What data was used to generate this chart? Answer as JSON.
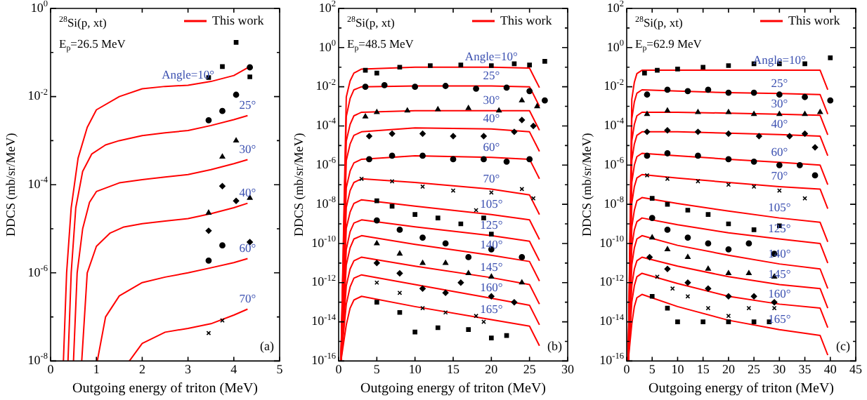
{
  "chart_data": [
    {
      "type": "scatter",
      "xlabel": "Outgoing energy of triton (MeV)",
      "ylabel": "DDCS (mb/sr/MeV)",
      "log": true,
      "legend": "top right",
      "xlim": [
        0,
        5
      ],
      "xticks": [
        0,
        1,
        2,
        3,
        4,
        5
      ],
      "ylim": [
        1e-08,
        1
      ],
      "yticks": [
        {
          "value": 1e-08,
          "label": "10$^{-8}$"
        },
        {
          "value": 1e-07,
          "label": null
        },
        {
          "value": 1e-06,
          "label": "10$^{-6}$"
        },
        {
          "value": 1e-05,
          "label": null
        },
        {
          "value": 0.0001,
          "label": "10$^{-4}$"
        },
        {
          "value": 0.001,
          "label": null
        },
        {
          "value": 0.01,
          "label": "10$^{-2}$"
        },
        {
          "value": 0.1,
          "label": null
        },
        {
          "value": 1,
          "label": "10$^{0}$"
        }
      ],
      "annotations": [
        "$^{28}$Si(p, xt)",
        "E$_{p}$=26.5 MeV",
        "(a)",
        {
          "text": "Angle=10°",
          "x": 3.0,
          "y": 0.018
        },
        {
          "text": "25°",
          "x": 4.3,
          "y": 0.0037
        },
        {
          "text": "30°",
          "x": 4.3,
          "y": 0.00037
        },
        {
          "text": "40°",
          "x": 4.3,
          "y": 3.8e-05
        },
        {
          "text": "60°",
          "x": 4.3,
          "y": 2.1e-06
        },
        {
          "text": "70°",
          "x": 4.3,
          "y": 1.5e-07
        }
      ],
      "series": [
        {
          "type": "scatter",
          "color": "#000000",
          "marker": "square",
          "x": [
            3.45,
            3.75,
            4.05,
            4.35
          ],
          "values": [
            0.027,
            0.048,
            0.17,
            0.028
          ]
        },
        {
          "type": "scatter",
          "color": "#000000",
          "marker": "circle",
          "x": [
            3.45,
            3.75,
            4.05,
            4.35
          ],
          "values": [
            0.0029,
            0.0047,
            0.011,
            0.046
          ]
        },
        {
          "type": "scatter",
          "color": "#000000",
          "marker": "triangle",
          "x": [
            3.45,
            3.75,
            4.05,
            4.35
          ],
          "values": [
            2.3e-05,
            0.00043,
            0.001,
            5e-05
          ]
        },
        {
          "type": "scatter",
          "color": "#000000",
          "marker": "diamond",
          "x": [
            3.45,
            3.75,
            4.05,
            4.35
          ],
          "values": [
            9e-06,
            9.3e-05,
            4.3e-05,
            5e-06
          ]
        },
        {
          "type": "scatter",
          "color": "#000000",
          "marker": "circle",
          "x": [
            3.45,
            3.75
          ],
          "values": [
            1.9e-06,
            4.2e-06
          ]
        },
        {
          "type": "scatter",
          "color": "#000000",
          "marker": "cross",
          "x": [
            3.45,
            3.75
          ],
          "values": [
            4.3e-08,
            8.3e-08
          ]
        },
        {
          "type": "line",
          "name": "This work",
          "color": "#ff0000",
          "x": [
            0.28,
            0.35,
            0.45,
            0.6,
            0.8,
            1.0,
            1.5,
            2.0,
            2.5,
            3.0,
            3.5,
            4.0,
            4.3
          ],
          "values": [
            1e-08,
            1e-06,
            3e-05,
            0.0004,
            0.002,
            0.005,
            0.01,
            0.015,
            0.017,
            0.018,
            0.022,
            0.03,
            0.045
          ]
        },
        {
          "type": "line",
          "color": "#ff0000",
          "x": [
            0.38,
            0.45,
            0.55,
            0.7,
            0.9,
            1.2,
            1.5,
            2.0,
            2.5,
            3.0,
            3.5,
            4.0,
            4.3
          ],
          "values": [
            1e-08,
            1e-06,
            3e-05,
            0.0002,
            0.0005,
            0.0008,
            0.001,
            0.0013,
            0.0015,
            0.0017,
            0.0022,
            0.003,
            0.0037
          ]
        },
        {
          "type": "line",
          "color": "#ff0000",
          "x": [
            0.5,
            0.58,
            0.7,
            0.85,
            1.0,
            1.5,
            2.0,
            2.5,
            3.0,
            3.5,
            4.0,
            4.3
          ],
          "values": [
            1e-08,
            1e-06,
            1e-05,
            4e-05,
            7e-05,
            0.00011,
            0.00013,
            0.00015,
            0.00017,
            0.00022,
            0.0003,
            0.00037
          ]
        },
        {
          "type": "line",
          "color": "#ff0000",
          "x": [
            0.68,
            0.8,
            1.0,
            1.3,
            1.6,
            2.0,
            2.5,
            3.0,
            3.5,
            4.0,
            4.3
          ],
          "values": [
            1e-08,
            1e-06,
            4e-06,
            8e-06,
            1.1e-05,
            1.3e-05,
            1.5e-05,
            1.7e-05,
            2.2e-05,
            3e-05,
            3.8e-05
          ]
        },
        {
          "type": "line",
          "color": "#ff0000",
          "x": [
            1.02,
            1.2,
            1.5,
            2.0,
            2.5,
            3.0,
            3.5,
            4.0,
            4.3
          ],
          "values": [
            1e-08,
            1e-07,
            3e-07,
            6e-07,
            8e-07,
            1e-06,
            1.3e-06,
            1.7e-06,
            2.1e-06
          ]
        },
        {
          "type": "line",
          "color": "#ff0000",
          "x": [
            1.72,
            2.0,
            2.5,
            3.0,
            3.5,
            4.0,
            4.3
          ],
          "values": [
            1e-08,
            2.5e-08,
            4.5e-08,
            5.5e-08,
            7e-08,
            1.1e-07,
            1.5e-07
          ]
        }
      ]
    },
    {
      "type": "scatter",
      "xlabel": "Outgoing energy of triton (MeV)",
      "ylabel": "DDCS (mb/sr/MeV)",
      "log": true,
      "legend": "top right",
      "xlim": [
        0,
        30
      ],
      "xticks": [
        0,
        5,
        10,
        15,
        20,
        25,
        30
      ],
      "ylim": [
        1e-16,
        100
      ],
      "yticks": [
        {
          "value": 1e-16,
          "label": "10$^{-16}$"
        },
        {
          "value": 1e-15,
          "label": null
        },
        {
          "value": 1e-14,
          "label": "10$^{-14}$"
        },
        {
          "value": 1e-13,
          "label": null
        },
        {
          "value": 1e-12,
          "label": "10$^{-12}$"
        },
        {
          "value": 1e-11,
          "label": null
        },
        {
          "value": 1e-10,
          "label": "10$^{-10}$"
        },
        {
          "value": 1e-09,
          "label": null
        },
        {
          "value": 1e-08,
          "label": "10$^{-8}$"
        },
        {
          "value": 1e-07,
          "label": null
        },
        {
          "value": 1e-06,
          "label": "10$^{-6}$"
        },
        {
          "value": 1e-05,
          "label": null
        },
        {
          "value": 0.0001,
          "label": "10$^{-4}$"
        },
        {
          "value": 0.001,
          "label": null
        },
        {
          "value": 0.01,
          "label": "10$^{-2}$"
        },
        {
          "value": 0.1,
          "label": null
        },
        {
          "value": 1,
          "label": "10$^{0}$"
        },
        {
          "value": 10,
          "label": null
        },
        {
          "value": 100,
          "label": "10$^{2}$"
        }
      ],
      "annotations": [
        "$^{28}$Si(p, xt)",
        "E$_{p}$=48.5 MeV",
        "(b)",
        {
          "text": "Angle=10°",
          "x": 20,
          "y": 0.1
        },
        {
          "text": "25°",
          "x": 20,
          "y": 0.011
        },
        {
          "text": "30°",
          "x": 20,
          "y": 0.0006
        },
        {
          "text": "40°",
          "x": 20,
          "y": 7e-05
        },
        {
          "text": "60°",
          "x": 20,
          "y": 2.5e-06
        },
        {
          "text": "70°",
          "x": 20,
          "y": 6e-08
        },
        {
          "text": "105°",
          "x": 20,
          "y": 3e-09
        },
        {
          "text": "125°",
          "x": 20,
          "y": 2.5e-10
        },
        {
          "text": "140°",
          "x": 20,
          "y": 2.5e-11
        },
        {
          "text": "145°",
          "x": 20,
          "y": 1.8e-12
        },
        {
          "text": "160°",
          "x": 20,
          "y": 1.6e-13
        },
        {
          "text": "165°",
          "x": 20,
          "y": 1.3e-14
        }
      ],
      "series": [
        {
          "type": "scatter",
          "color": "#000000",
          "marker": "square",
          "x": [
            3.5,
            5,
            8,
            12,
            16,
            20,
            23,
            25,
            27
          ],
          "values": [
            0.07,
            0.05,
            0.1,
            0.12,
            0.13,
            0.12,
            0.15,
            0.13,
            0.2
          ]
        },
        {
          "type": "scatter",
          "color": "#000000",
          "marker": "circle",
          "x": [
            3.5,
            6,
            10,
            14,
            18,
            22,
            25,
            27
          ],
          "values": [
            0.01,
            0.012,
            0.01,
            0.011,
            0.008,
            0.009,
            0.006,
            0.002
          ]
        },
        {
          "type": "scatter",
          "color": "#000000",
          "marker": "triangle",
          "x": [
            3.5,
            5,
            9,
            13,
            17,
            21,
            24,
            26
          ],
          "values": [
            0.0003,
            0.0005,
            0.0006,
            0.0007,
            0.0008,
            0.0006,
            0.002,
            0.001
          ]
        },
        {
          "type": "scatter",
          "color": "#000000",
          "marker": "diamond",
          "x": [
            4,
            7,
            11,
            15,
            19,
            23,
            24,
            25.5
          ],
          "values": [
            3e-05,
            4e-05,
            4e-05,
            3e-05,
            3e-05,
            5e-05,
            0.0002,
            0.0001
          ]
        },
        {
          "type": "scatter",
          "color": "#000000",
          "marker": "circle",
          "x": [
            4,
            7,
            11,
            15,
            19,
            22,
            25
          ],
          "values": [
            2e-06,
            3e-06,
            3e-06,
            2e-06,
            2e-06,
            1.5e-06,
            2e-06
          ]
        },
        {
          "type": "scatter",
          "color": "#000000",
          "marker": "cross",
          "x": [
            3,
            7,
            11,
            15,
            18,
            20,
            24,
            25.5
          ],
          "values": [
            2e-07,
            1.5e-07,
            8e-08,
            5e-08,
            5e-09,
            4e-08,
            6e-08,
            2e-08
          ]
        },
        {
          "type": "scatter",
          "color": "#000000",
          "marker": "square",
          "x": [
            5,
            7,
            10,
            13,
            16,
            19,
            20
          ],
          "values": [
            1.5e-08,
            8e-09,
            3e-09,
            2e-09,
            1e-09,
            2e-09,
            3e-10
          ]
        },
        {
          "type": "scatter",
          "color": "#000000",
          "marker": "circle",
          "x": [
            5,
            8,
            11,
            14,
            17,
            20,
            24
          ],
          "values": [
            1.5e-09,
            5e-10,
            2e-10,
            1e-10,
            2e-11,
            5e-11,
            2e-11
          ]
        },
        {
          "type": "scatter",
          "color": "#000000",
          "marker": "triangle",
          "x": [
            5,
            8,
            11,
            14,
            17,
            20,
            24
          ],
          "values": [
            1e-10,
            3e-11,
            1e-11,
            1e-11,
            3e-12,
            2e-12,
            1e-12
          ]
        },
        {
          "type": "scatter",
          "color": "#000000",
          "marker": "diamond",
          "x": [
            5,
            8,
            11,
            14,
            16,
            20,
            23
          ],
          "values": [
            1e-11,
            3e-12,
            5e-13,
            3e-13,
            1e-12,
            2e-13,
            1e-13
          ]
        },
        {
          "type": "scatter",
          "color": "#000000",
          "marker": "cross",
          "x": [
            5,
            8,
            11,
            14,
            18,
            19
          ],
          "values": [
            1e-12,
            3e-13,
            5e-14,
            3e-14,
            2e-14,
            1e-14
          ]
        },
        {
          "type": "scatter",
          "color": "#000000",
          "marker": "square",
          "x": [
            5,
            8,
            10,
            13,
            17,
            20,
            22
          ],
          "values": [
            1e-13,
            3e-14,
            3e-15,
            5e-15,
            4e-15,
            1.5e-15,
            2e-15
          ]
        },
        {
          "type": "line",
          "name": "This work",
          "color": "#ff0000",
          "x": [
            0.3,
            1,
            1.5,
            2,
            3,
            10,
            20,
            25,
            26.3
          ],
          "values": [
            1e-16,
            0.003,
            0.02,
            0.05,
            0.08,
            0.1,
            0.1,
            0.09,
            0.009
          ]
        },
        {
          "type": "line",
          "color": "#ff0000",
          "x": [
            0.3,
            1,
            1.5,
            2,
            3,
            10,
            20,
            25,
            26.3
          ],
          "values": [
            1e-16,
            0.0003,
            0.0025,
            0.007,
            0.01,
            0.011,
            0.011,
            0.01,
            0.001
          ]
        },
        {
          "type": "line",
          "color": "#ff0000",
          "x": [
            0.3,
            1,
            1.5,
            2,
            3,
            10,
            20,
            25,
            26.3
          ],
          "values": [
            1e-16,
            1.7e-05,
            0.00012,
            0.00033,
            0.0005,
            0.0006,
            0.0006,
            0.0006,
            6e-05
          ]
        },
        {
          "type": "line",
          "color": "#ff0000",
          "x": [
            0.3,
            1,
            1.5,
            2,
            3,
            10,
            20,
            25,
            26.3
          ],
          "values": [
            1e-16,
            1.7e-06,
            1.2e-05,
            3.3e-05,
            5e-05,
            8e-05,
            7e-05,
            5e-05,
            5e-06
          ]
        },
        {
          "type": "line",
          "color": "#ff0000",
          "x": [
            0.3,
            1,
            1.5,
            2,
            3,
            10,
            20,
            25,
            26.3
          ],
          "values": [
            1e-16,
            7e-08,
            5e-07,
            1.3e-06,
            2e-06,
            3e-06,
            2.5e-06,
            2e-06,
            2e-07
          ]
        },
        {
          "type": "line",
          "color": "#ff0000",
          "x": [
            0.3,
            1,
            1.5,
            2,
            3,
            10,
            20,
            25,
            26.3
          ],
          "values": [
            1e-16,
            7e-09,
            5e-08,
            1.3e-07,
            2e-07,
            1.3e-07,
            6e-08,
            3e-08,
            3e-09
          ]
        },
        {
          "type": "line",
          "color": "#ff0000",
          "x": [
            0.3,
            1,
            1.5,
            2,
            3,
            10,
            20,
            25,
            26.3
          ],
          "values": [
            1e-16,
            6e-10,
            4e-09,
            1.1e-08,
            1.7e-08,
            8e-09,
            3e-09,
            1.6e-09,
            1.6e-10
          ]
        },
        {
          "type": "line",
          "color": "#ff0000",
          "x": [
            0.3,
            1,
            1.5,
            2,
            3,
            10,
            20,
            25,
            26.3
          ],
          "values": [
            1e-16,
            5e-11,
            4e-10,
            1.1e-09,
            1.6e-09,
            7e-10,
            2.5e-10,
            1.3e-10,
            1.3e-11
          ]
        },
        {
          "type": "line",
          "color": "#ff0000",
          "x": [
            0.3,
            1,
            1.5,
            2,
            3,
            10,
            20,
            25,
            26.3
          ],
          "values": [
            1e-16,
            8e-12,
            6e-11,
            1.7e-10,
            2.5e-10,
            9e-11,
            2.5e-11,
            1.2e-11,
            1.2e-12
          ]
        },
        {
          "type": "line",
          "color": "#ff0000",
          "x": [
            0.3,
            1,
            1.5,
            2,
            3,
            10,
            20,
            25,
            26.3
          ],
          "values": [
            1e-16,
            7e-13,
            5e-12,
            1.3e-11,
            2e-11,
            7e-12,
            1.8e-12,
            8e-13,
            8e-14
          ]
        },
        {
          "type": "line",
          "color": "#ff0000",
          "x": [
            0.3,
            1,
            1.5,
            2,
            3,
            10,
            20,
            25,
            26.3
          ],
          "values": [
            1e-16,
            8e-14,
            6e-13,
            1.7e-12,
            2.5e-12,
            8e-13,
            1.6e-13,
            7e-14,
            7e-15
          ]
        },
        {
          "type": "line",
          "color": "#ff0000",
          "x": [
            0.3,
            1,
            1.5,
            2,
            3,
            10,
            20,
            25,
            26.3
          ],
          "values": [
            1e-16,
            7e-15,
            5e-14,
            1.3e-13,
            2e-13,
            6e-14,
            1.3e-14,
            6e-15,
            6e-16
          ]
        }
      ]
    },
    {
      "type": "scatter",
      "xlabel": "Outgoing energy of triton (MeV)",
      "ylabel": "DDCS (mb/sr/MeV)",
      "log": true,
      "legend": "top right",
      "xlim": [
        0,
        45
      ],
      "xticks": [
        0,
        5,
        10,
        15,
        20,
        25,
        30,
        35,
        40,
        45
      ],
      "ylim": [
        1e-16,
        100
      ],
      "yticks": [
        {
          "value": 1e-16,
          "label": "10$^{-16}$"
        },
        {
          "value": 1e-15,
          "label": null
        },
        {
          "value": 1e-14,
          "label": "10$^{-14}$"
        },
        {
          "value": 1e-13,
          "label": null
        },
        {
          "value": 1e-12,
          "label": "10$^{-12}$"
        },
        {
          "value": 1e-11,
          "label": null
        },
        {
          "value": 1e-10,
          "label": "10$^{-10}$"
        },
        {
          "value": 1e-09,
          "label": null
        },
        {
          "value": 1e-08,
          "label": "10$^{-8}$"
        },
        {
          "value": 1e-07,
          "label": null
        },
        {
          "value": 1e-06,
          "label": "10$^{-6}$"
        },
        {
          "value": 1e-05,
          "label": null
        },
        {
          "value": 0.0001,
          "label": "10$^{-4}$"
        },
        {
          "value": 0.001,
          "label": null
        },
        {
          "value": 0.01,
          "label": "10$^{-2}$"
        },
        {
          "value": 0.1,
          "label": null
        },
        {
          "value": 1,
          "label": "10$^{0}$"
        },
        {
          "value": 10,
          "label": null
        },
        {
          "value": 100,
          "label": "10$^{2}$"
        }
      ],
      "annotations": [
        "$^{28}$Si(p, xt)",
        "E$_{p}$=62.9 MeV",
        "(c)",
        {
          "text": "Angle=10°",
          "x": 30,
          "y": 0.07
        },
        {
          "text": "25°",
          "x": 30,
          "y": 0.0045
        },
        {
          "text": "30°",
          "x": 30,
          "y": 0.0004
        },
        {
          "text": "40°",
          "x": 30,
          "y": 3.6e-05
        },
        {
          "text": "60°",
          "x": 30,
          "y": 1.4e-06
        },
        {
          "text": "70°",
          "x": 30,
          "y": 8e-08
        },
        {
          "text": "105°",
          "x": 30,
          "y": 2e-09
        },
        {
          "text": "125°",
          "x": 30,
          "y": 1.7e-10
        },
        {
          "text": "140°",
          "x": 30,
          "y": 9e-12
        },
        {
          "text": "145°",
          "x": 30,
          "y": 8e-13
        },
        {
          "text": "160°",
          "x": 30,
          "y": 8e-14
        },
        {
          "text": "165°",
          "x": 30,
          "y": 4e-15
        }
      ],
      "series": [
        {
          "type": "scatter",
          "color": "#000000",
          "marker": "square",
          "x": [
            3.5,
            6,
            10,
            15,
            20,
            25,
            30,
            35,
            40
          ],
          "values": [
            0.05,
            0.07,
            0.08,
            0.1,
            0.12,
            0.15,
            0.15,
            0.15,
            0.3
          ]
        },
        {
          "type": "scatter",
          "color": "#000000",
          "marker": "circle",
          "x": [
            4,
            8,
            12,
            16,
            20,
            25,
            30,
            35,
            40
          ],
          "values": [
            0.004,
            0.007,
            0.006,
            0.007,
            0.005,
            0.005,
            0.004,
            0.003,
            0.002
          ]
        },
        {
          "type": "scatter",
          "color": "#000000",
          "marker": "triangle",
          "x": [
            4,
            8,
            14,
            20,
            25,
            30,
            35,
            38
          ],
          "values": [
            0.0004,
            0.0006,
            0.0005,
            0.0005,
            0.0004,
            0.0004,
            0.0004,
            0.0005
          ]
        },
        {
          "type": "scatter",
          "color": "#000000",
          "marker": "diamond",
          "x": [
            4,
            8,
            14,
            20,
            26,
            32,
            35,
            37
          ],
          "values": [
            5e-05,
            6e-05,
            5e-05,
            4e-05,
            3e-05,
            3e-05,
            4e-05,
            8e-06
          ]
        },
        {
          "type": "scatter",
          "color": "#000000",
          "marker": "circle",
          "x": [
            4,
            8,
            14,
            20,
            25,
            30,
            34,
            37
          ],
          "values": [
            3e-06,
            4e-06,
            3e-06,
            2e-06,
            1.5e-06,
            1e-06,
            1e-06,
            3e-07
          ]
        },
        {
          "type": "scatter",
          "color": "#000000",
          "marker": "cross",
          "x": [
            4,
            8,
            14,
            20,
            25,
            30,
            35
          ],
          "values": [
            3e-07,
            2e-07,
            1.5e-07,
            1e-07,
            8e-08,
            5e-08,
            2e-08
          ]
        },
        {
          "type": "scatter",
          "color": "#000000",
          "marker": "square",
          "x": [
            5,
            8,
            12,
            16,
            20,
            25,
            30
          ],
          "values": [
            2e-08,
            1e-08,
            5e-09,
            3e-09,
            1e-09,
            5e-10,
            8e-10
          ]
        },
        {
          "type": "scatter",
          "color": "#000000",
          "marker": "circle",
          "x": [
            5,
            8,
            12,
            16,
            20,
            24,
            29
          ],
          "values": [
            2e-09,
            5e-10,
            2e-10,
            1e-10,
            5e-11,
            1e-10,
            3e-11
          ]
        },
        {
          "type": "scatter",
          "color": "#000000",
          "marker": "triangle",
          "x": [
            5,
            8,
            12,
            16,
            20,
            24,
            29
          ],
          "values": [
            2e-10,
            5e-11,
            2e-11,
            5e-12,
            3e-12,
            3e-12,
            2e-12
          ]
        },
        {
          "type": "scatter",
          "color": "#000000",
          "marker": "diamond",
          "x": [
            4.5,
            8,
            12,
            16,
            20,
            25,
            29
          ],
          "values": [
            2e-11,
            5e-12,
            1e-12,
            5e-13,
            2e-13,
            2e-13,
            1e-13
          ]
        },
        {
          "type": "scatter",
          "color": "#000000",
          "marker": "cross",
          "x": [
            6,
            9,
            12,
            16,
            20,
            24,
            29
          ],
          "values": [
            2e-12,
            5e-13,
            2e-13,
            5e-14,
            2e-14,
            5e-14,
            5e-14
          ]
        },
        {
          "type": "scatter",
          "color": "#000000",
          "marker": "square",
          "x": [
            5,
            8,
            10,
            15,
            20,
            25,
            28
          ],
          "values": [
            2e-13,
            5e-14,
            1e-14,
            1e-14,
            1e-14,
            1e-14,
            1e-14
          ]
        },
        {
          "type": "line",
          "name": "This work",
          "color": "#ff0000",
          "x": [
            0.3,
            1,
            1.5,
            2,
            3,
            10,
            20,
            30,
            38,
            39.5
          ],
          "values": [
            1e-16,
            0.0023,
            0.017,
            0.047,
            0.07,
            0.07,
            0.07,
            0.07,
            0.07,
            0.007
          ]
        },
        {
          "type": "line",
          "color": "#ff0000",
          "x": [
            0.3,
            1,
            1.5,
            2,
            3,
            10,
            20,
            30,
            38,
            39.5
          ],
          "values": [
            1e-16,
            0.00023,
            0.0017,
            0.0047,
            0.007,
            0.006,
            0.005,
            0.0045,
            0.004,
            0.0004
          ]
        },
        {
          "type": "line",
          "color": "#ff0000",
          "x": [
            0.3,
            1,
            1.5,
            2,
            3,
            10,
            20,
            30,
            38,
            39.5
          ],
          "values": [
            1e-16,
            1.7e-05,
            0.00012,
            0.00033,
            0.0005,
            0.0005,
            0.00045,
            0.0004,
            0.00035,
            3.5e-05
          ]
        },
        {
          "type": "line",
          "color": "#ff0000",
          "x": [
            0.3,
            1,
            1.5,
            2,
            3,
            10,
            20,
            30,
            38,
            39.5
          ],
          "values": [
            1e-16,
            1.7e-06,
            1.2e-05,
            3.3e-05,
            5e-05,
            5e-05,
            4.3e-05,
            3.6e-05,
            3e-05,
            3e-06
          ]
        },
        {
          "type": "line",
          "color": "#ff0000",
          "x": [
            0.3,
            1,
            1.5,
            2,
            3,
            10,
            20,
            30,
            38,
            39.5
          ],
          "values": [
            1e-16,
            1.3e-07,
            1e-06,
            2.7e-06,
            4e-06,
            3e-06,
            2e-06,
            1.4e-06,
            1e-06,
            1e-07
          ]
        },
        {
          "type": "line",
          "color": "#ff0000",
          "x": [
            0.3,
            1,
            1.5,
            2,
            3,
            10,
            20,
            30,
            38,
            39.5
          ],
          "values": [
            1e-16,
            1.1e-08,
            8e-08,
            2.2e-07,
            3.3e-07,
            2.2e-07,
            1.3e-07,
            8e-08,
            6e-08,
            6e-09
          ]
        },
        {
          "type": "line",
          "color": "#ff0000",
          "x": [
            0.3,
            1,
            1.5,
            2,
            3,
            10,
            20,
            30,
            38,
            39.5
          ],
          "values": [
            1e-16,
            7e-10,
            5e-09,
            1.5e-08,
            2.2e-08,
            1.1e-08,
            4.5e-09,
            2e-09,
            1.2e-09,
            1.2e-10
          ]
        },
        {
          "type": "line",
          "color": "#ff0000",
          "x": [
            0.3,
            1,
            1.5,
            2,
            3,
            10,
            20,
            30,
            38,
            39.5
          ],
          "values": [
            1e-16,
            7e-11,
            5e-10,
            1.3e-09,
            2e-09,
            9e-10,
            3.5e-10,
            1.7e-10,
            1e-10,
            1e-11
          ]
        },
        {
          "type": "line",
          "color": "#ff0000",
          "x": [
            0.3,
            1,
            1.5,
            2,
            3,
            10,
            20,
            30,
            38,
            39.5
          ],
          "values": [
            1e-16,
            8e-12,
            6e-11,
            1.7e-10,
            2.5e-10,
            8e-11,
            2.5e-11,
            9e-12,
            5e-12,
            5e-13
          ]
        },
        {
          "type": "line",
          "color": "#ff0000",
          "x": [
            0.3,
            1,
            1.5,
            2,
            3,
            10,
            20,
            30,
            38,
            39.5
          ],
          "values": [
            1e-16,
            7e-13,
            5e-12,
            1.3e-11,
            2e-11,
            7e-12,
            2e-12,
            8e-13,
            5e-13,
            5e-14
          ]
        },
        {
          "type": "line",
          "color": "#ff0000",
          "x": [
            0.3,
            1,
            1.5,
            2,
            3,
            10,
            20,
            30,
            38,
            39.5
          ],
          "values": [
            1e-16,
            1e-13,
            7e-13,
            2e-12,
            3e-12,
            9e-13,
            2e-13,
            8e-14,
            5e-14,
            5e-15
          ]
        },
        {
          "type": "line",
          "color": "#ff0000",
          "x": [
            0.3,
            1,
            1.5,
            2,
            3,
            10,
            20,
            30,
            38,
            39.5
          ],
          "values": [
            1e-16,
            8e-15,
            6e-14,
            1.7e-13,
            2.5e-13,
            6e-14,
            1.2e-14,
            4e-15,
            2e-15,
            2e-16
          ]
        }
      ]
    }
  ]
}
